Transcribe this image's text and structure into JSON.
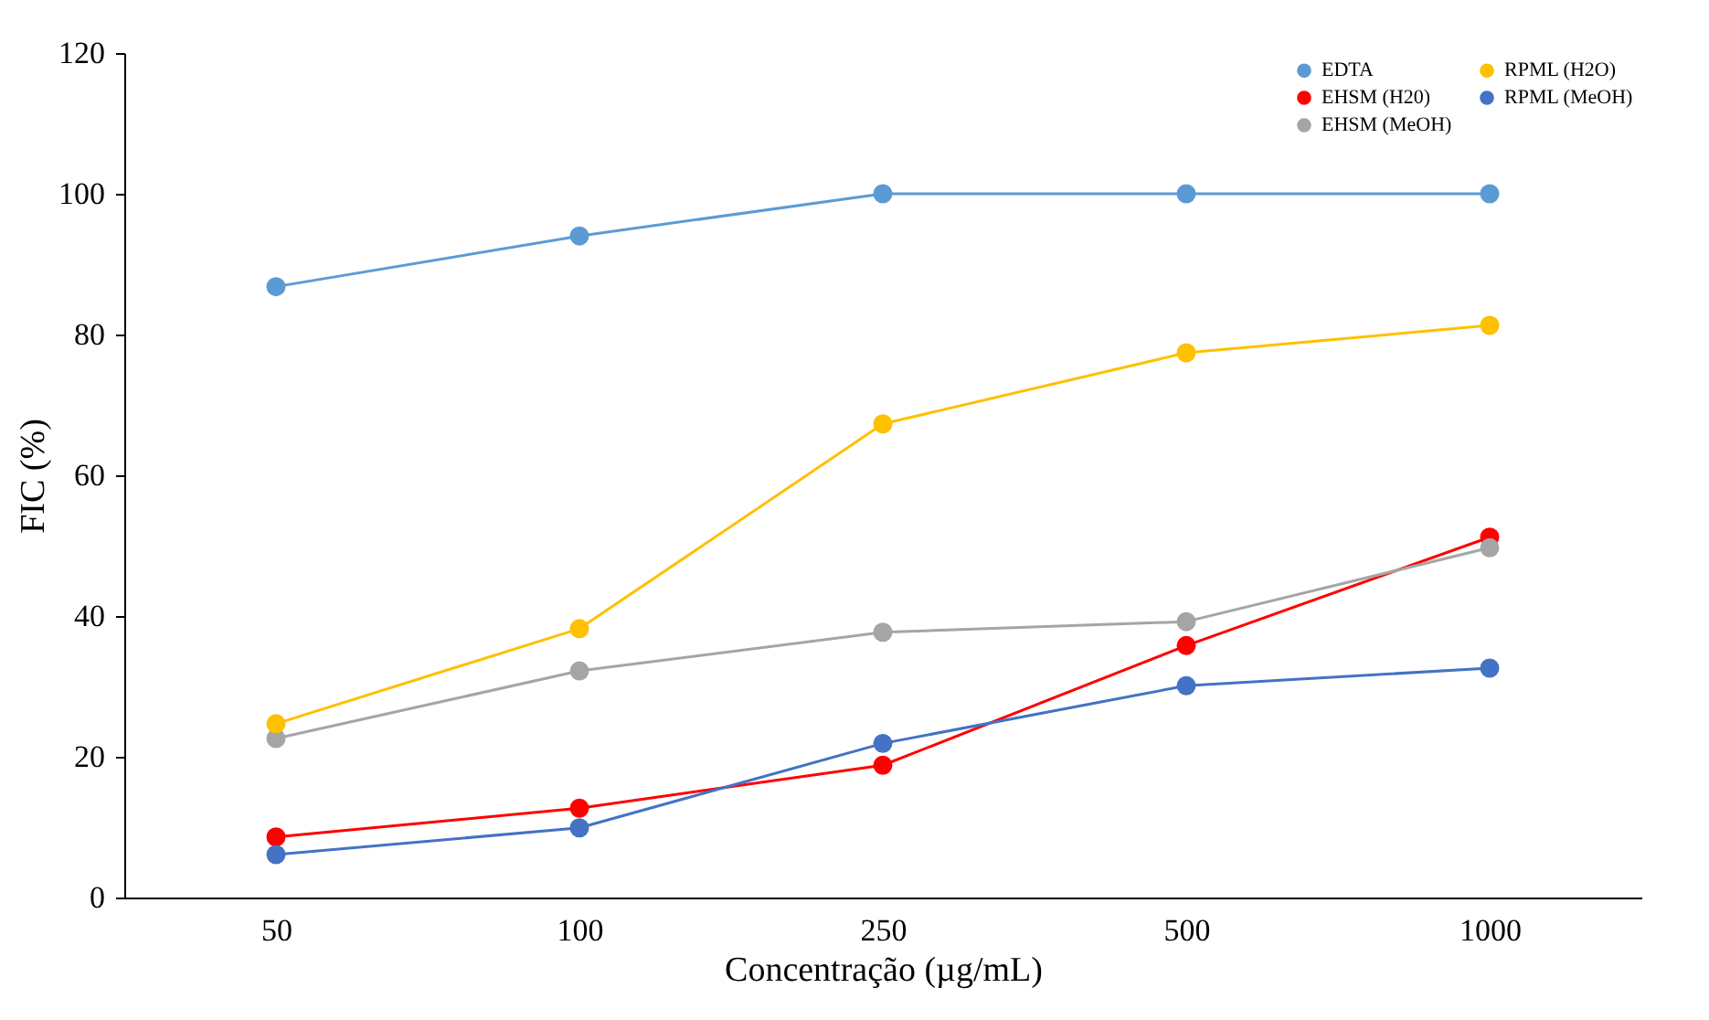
{
  "chart_data": {
    "type": "line",
    "xlabel": "Concentração (µg/mL)",
    "ylabel": "FIC (%)",
    "categories": [
      "50",
      "100",
      "250",
      "500",
      "1000"
    ],
    "ylim": [
      0,
      120
    ],
    "yticks": [
      0,
      20,
      40,
      60,
      80,
      100,
      120
    ],
    "grid": false,
    "legend": "top right",
    "marker": "circle",
    "line_style": "solid",
    "series": [
      {
        "name": "EDTA",
        "color": "#5b9bd5",
        "values": [
          86.8,
          94,
          100,
          100,
          100
        ]
      },
      {
        "name": "EHSM (H20)",
        "color": "#ff0000",
        "values": [
          8.6,
          12.7,
          18.8,
          35.8,
          51.2
        ]
      },
      {
        "name": "EHSM (MeOH)",
        "color": "#a5a5a5",
        "values": [
          22.6,
          32.2,
          37.7,
          39.2,
          49.7
        ]
      },
      {
        "name": "RPML (H2O)",
        "color": "#ffc000",
        "values": [
          24.7,
          38.2,
          67.3,
          77.4,
          81.3
        ]
      },
      {
        "name": "RPML (MeOH)",
        "color": "#4472c4",
        "values": [
          6.1,
          9.9,
          21.9,
          30.1,
          32.6
        ]
      }
    ]
  }
}
